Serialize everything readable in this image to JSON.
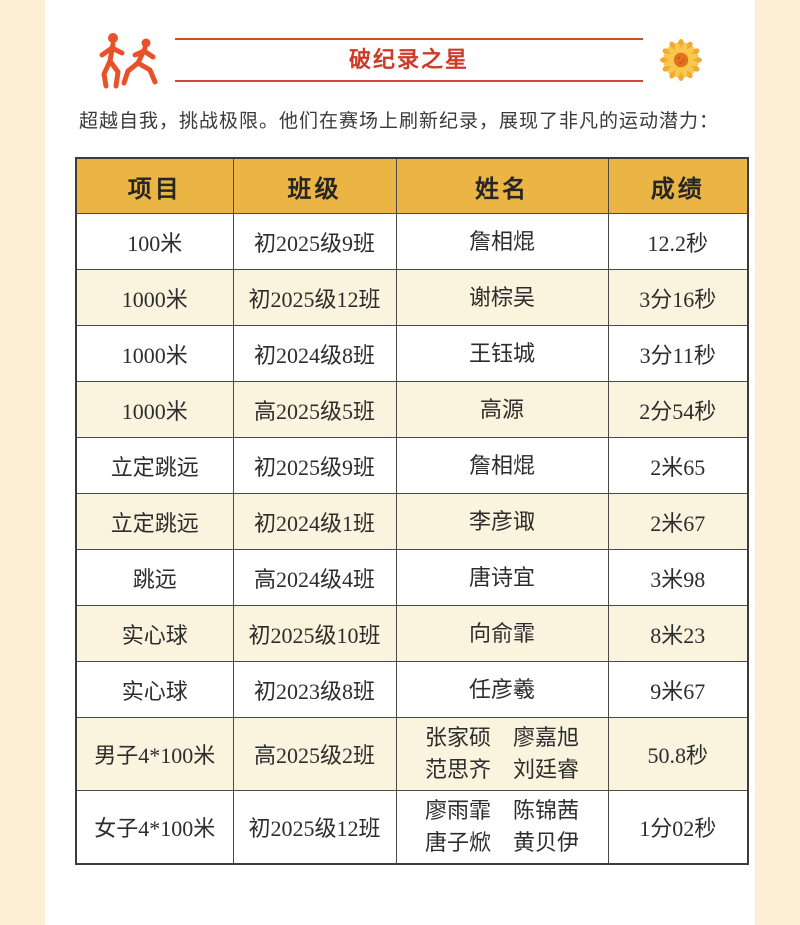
{
  "page": {
    "background_color": "#fdeed6",
    "card_color": "#ffffff"
  },
  "header": {
    "title": "破纪录之星",
    "accent_red": "#ce3a28",
    "line_red": "#d14a2e",
    "icons": {
      "left": "runners-icon",
      "right": "sunflower-icon"
    },
    "icon_orange": "#e8522a",
    "sunflower_petal": "#f2a832",
    "sunflower_center": "#e2711e"
  },
  "intro": {
    "text": "超越自我，挑战极限。他们在赛场上刷新纪录，展现了非凡的运动潜力："
  },
  "table": {
    "header_bg": "#ebb545",
    "alt_row_bg": "#faf3dd",
    "border_color": "#4a4a4a",
    "columns": [
      "项目",
      "班级",
      "姓名",
      "成绩"
    ],
    "rows": [
      {
        "event": "100米",
        "class": "初2025级9班",
        "name": "詹相焜",
        "result": "12.2秒"
      },
      {
        "event": "1000米",
        "class": "初2025级12班",
        "name": "谢棕吴",
        "result": "3分16秒"
      },
      {
        "event": "1000米",
        "class": "初2024级8班",
        "name": "王钰城",
        "result": "3分11秒"
      },
      {
        "event": "1000米",
        "class": "高2025级5班",
        "name": "高源",
        "result": "2分54秒"
      },
      {
        "event": "立定跳远",
        "class": "初2025级9班",
        "name": "詹相焜",
        "result": "2米65"
      },
      {
        "event": "立定跳远",
        "class": "初2024级1班",
        "name": "李彦诹",
        "result": "2米67"
      },
      {
        "event": "跳远",
        "class": "高2024级4班",
        "name": "唐诗宜",
        "result": "3米98"
      },
      {
        "event": "实心球",
        "class": "初2025级10班",
        "name": "向俞霏",
        "result": "8米23"
      },
      {
        "event": "实心球",
        "class": "初2023级8班",
        "name": "任彦羲",
        "result": "9米67"
      },
      {
        "event": "男子4*100米",
        "class": "高2025级2班",
        "name": "张家硕　廖嘉旭\n范思齐　刘廷睿",
        "result": "50.8秒"
      },
      {
        "event": "女子4*100米",
        "class": "初2025级12班",
        "name": "廖雨霏　陈锦茜\n唐子焮　黄贝伊",
        "result": "1分02秒"
      }
    ]
  }
}
